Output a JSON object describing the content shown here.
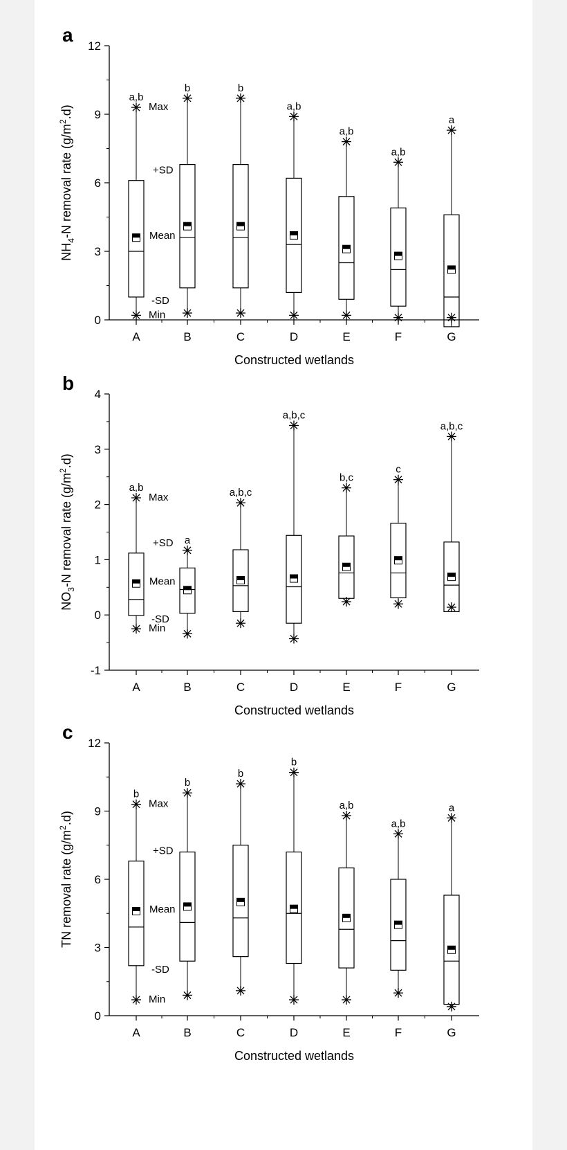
{
  "chart_data": [
    {
      "type": "box",
      "panel_label": "a",
      "title": "",
      "xlabel": "Constructed wetlands",
      "ylabel_parts": [
        "NH",
        "4",
        "-N removal rate (g/m",
        "2",
        ".d)"
      ],
      "ylim": [
        0,
        12
      ],
      "yticks": [
        "0",
        "3",
        "6",
        "9",
        "12"
      ],
      "categories": [
        "A",
        "B",
        "C",
        "D",
        "E",
        "F",
        "G"
      ],
      "max": [
        9.3,
        9.7,
        9.7,
        8.9,
        7.8,
        6.9,
        8.3
      ],
      "plus_sd": [
        6.1,
        6.8,
        6.8,
        6.2,
        5.4,
        4.9,
        4.6
      ],
      "median": [
        3.0,
        3.6,
        3.6,
        3.3,
        2.5,
        2.2,
        1.0
      ],
      "mean": [
        3.6,
        4.1,
        4.1,
        3.7,
        3.1,
        2.8,
        2.2
      ],
      "minus_sd": [
        1.0,
        1.4,
        1.4,
        1.2,
        0.9,
        0.6,
        -0.3
      ],
      "min": [
        0.2,
        0.3,
        0.3,
        0.2,
        0.2,
        0.1,
        0.1
      ],
      "significance": [
        "a,b",
        "b",
        "b",
        "a,b",
        "a,b",
        "a,b",
        "a"
      ],
      "legend": {
        "max": "Max",
        "plus_sd": "+SD",
        "mean": "Mean",
        "minus_sd": "-SD",
        "min": "Min"
      }
    },
    {
      "type": "box",
      "panel_label": "b",
      "title": "",
      "xlabel": "Constructed wetlands",
      "ylabel_parts": [
        "NO",
        "3",
        "-N removal rate (g/m",
        "2",
        ".d)"
      ],
      "ylim": [
        -1,
        4
      ],
      "yticks": [
        "-1",
        "0",
        "1",
        "2",
        "3",
        "4"
      ],
      "categories": [
        "A",
        "B",
        "C",
        "D",
        "E",
        "F",
        "G"
      ],
      "max": [
        2.12,
        1.17,
        2.03,
        3.43,
        2.3,
        2.45,
        3.23
      ],
      "plus_sd": [
        1.12,
        0.85,
        1.18,
        1.44,
        1.43,
        1.66,
        1.32
      ],
      "median": [
        0.28,
        0.46,
        0.53,
        0.51,
        0.76,
        0.76,
        0.54
      ],
      "mean": [
        0.57,
        0.45,
        0.63,
        0.66,
        0.87,
        0.99,
        0.69
      ],
      "minus_sd": [
        -0.01,
        0.03,
        0.06,
        -0.15,
        0.3,
        0.31,
        0.06
      ],
      "min": [
        -0.25,
        -0.34,
        -0.15,
        -0.43,
        0.24,
        0.2,
        0.14
      ],
      "significance": [
        "a,b",
        "a",
        "a,b,c",
        "a,b,c",
        "b,c",
        "c",
        "a,b,c"
      ],
      "legend": {
        "max": "Max",
        "plus_sd": "+SD",
        "mean": "Mean",
        "minus_sd": "-SD",
        "min": "Min"
      }
    },
    {
      "type": "box",
      "panel_label": "c",
      "title": "",
      "xlabel": "Constructed wetlands",
      "ylabel_parts": [
        "TN removal rate (g/m",
        "2",
        ".d)",
        "",
        ""
      ],
      "ylim": [
        0,
        12
      ],
      "yticks": [
        "0",
        "3",
        "6",
        "9",
        "12"
      ],
      "categories": [
        "A",
        "B",
        "C",
        "D",
        "E",
        "F",
        "G"
      ],
      "max": [
        9.3,
        9.8,
        10.2,
        10.7,
        8.8,
        8.0,
        8.7
      ],
      "plus_sd": [
        6.8,
        7.2,
        7.5,
        7.2,
        6.5,
        6.0,
        5.3
      ],
      "median": [
        3.9,
        4.1,
        4.3,
        4.5,
        3.8,
        3.3,
        2.4
      ],
      "mean": [
        4.6,
        4.8,
        5.0,
        4.7,
        4.3,
        4.0,
        2.9
      ],
      "minus_sd": [
        2.2,
        2.4,
        2.6,
        2.3,
        2.1,
        2.0,
        0.5
      ],
      "min": [
        0.7,
        0.9,
        1.1,
        0.7,
        0.7,
        1.0,
        0.4
      ],
      "significance": [
        "b",
        "b",
        "b",
        "b",
        "a,b",
        "a,b",
        "a"
      ],
      "legend": {
        "max": "Max",
        "plus_sd": "+SD",
        "mean": "Mean",
        "minus_sd": "-SD",
        "min": "Min"
      }
    }
  ]
}
